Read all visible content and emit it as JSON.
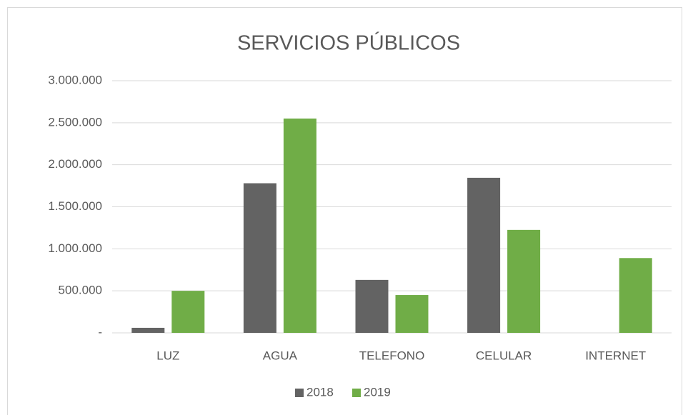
{
  "chart_data": {
    "type": "bar",
    "title": "SERVICIOS PÚBLICOS",
    "categories": [
      "LUZ",
      "AGUA",
      "TELEFONO",
      "CELULAR",
      "INTERNET"
    ],
    "series": [
      {
        "name": "2018",
        "color": "#636363",
        "values": [
          60000,
          1780000,
          630000,
          1845000,
          0
        ]
      },
      {
        "name": "2019",
        "color": "#70ad47",
        "values": [
          500000,
          2550000,
          450000,
          1225000,
          890000
        ]
      }
    ],
    "ylim": [
      0,
      3000000
    ],
    "yticks": [
      {
        "value": 0,
        "label": "-"
      },
      {
        "value": 500000,
        "label": "500.000"
      },
      {
        "value": 1000000,
        "label": "1.000.000"
      },
      {
        "value": 1500000,
        "label": "1.500.000"
      },
      {
        "value": 2000000,
        "label": "2.000.000"
      },
      {
        "value": 2500000,
        "label": "2.500.000"
      },
      {
        "value": 3000000,
        "label": "3.000.000"
      }
    ],
    "grid": true,
    "legend": "bottom"
  }
}
